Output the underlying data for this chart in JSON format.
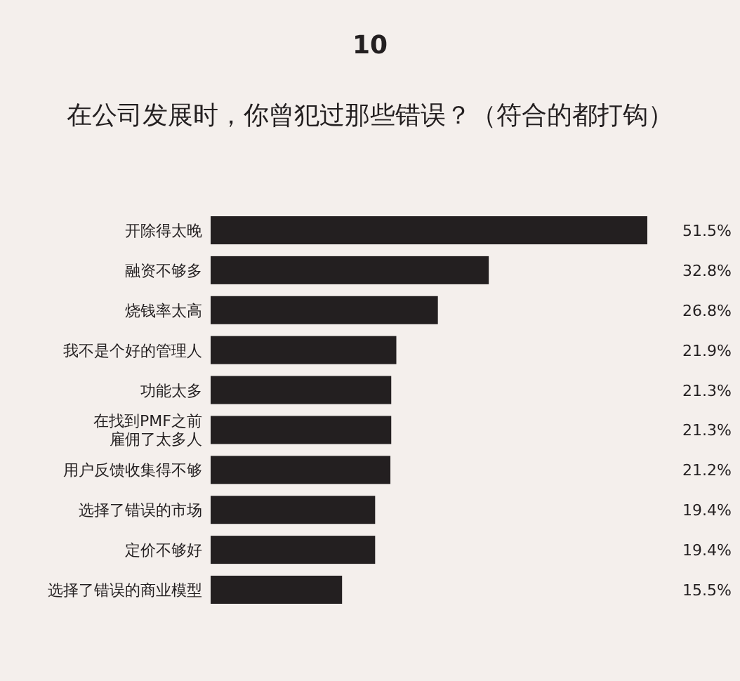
{
  "chart_data": {
    "type": "bar",
    "orientation": "horizontal",
    "title": "10",
    "subtitle": "在公司发展时，你曾犯过那些错误？（符合的都打钩）",
    "categories": [
      "开除得太晚",
      "融资不够多",
      "烧钱率太高",
      "我不是个好的管理人",
      "功能太多",
      "在找到PMF之前雇佣了太多人",
      "用户反馈收集得不够",
      "选择了错误的市场",
      "定价不够好",
      "选择了错误的商业模型"
    ],
    "values": [
      51.5,
      32.8,
      26.8,
      21.9,
      21.3,
      21.3,
      21.2,
      19.4,
      19.4,
      15.5
    ],
    "value_labels": [
      "51.5%",
      "32.8%",
      "26.8%",
      "21.9%",
      "21.3%",
      "21.3%",
      "21.2%",
      "19.4%",
      "19.4%",
      "15.5%"
    ],
    "color": "#231f20"
  }
}
